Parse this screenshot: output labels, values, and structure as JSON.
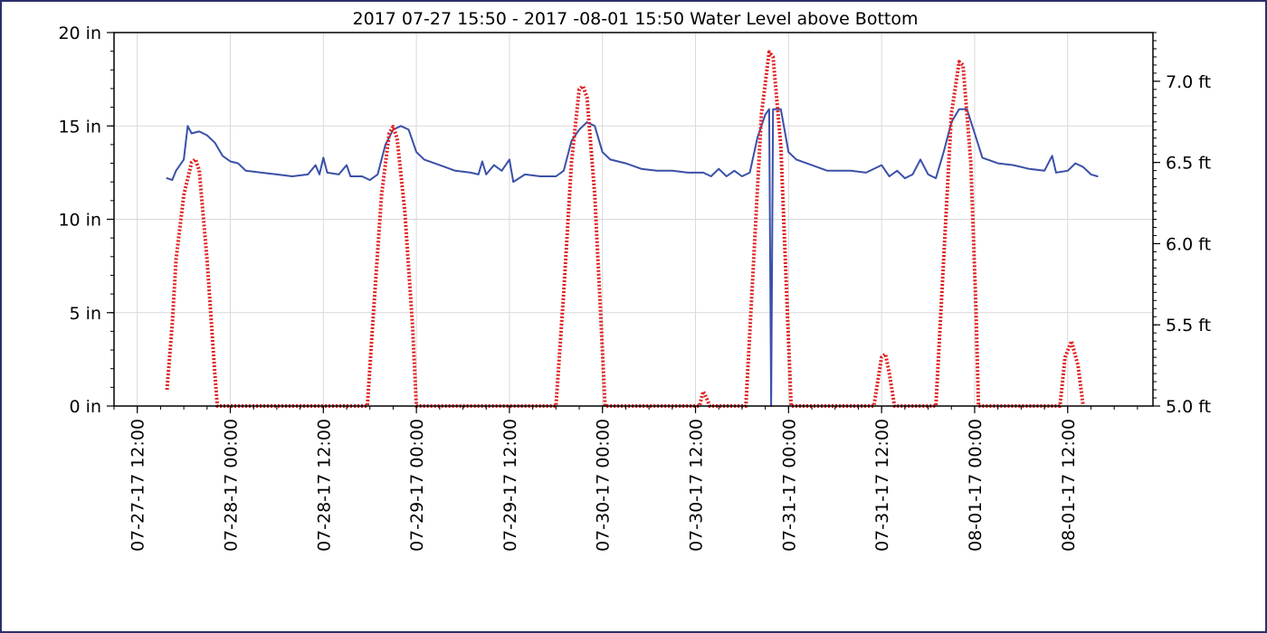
{
  "chart_data": {
    "type": "line",
    "title": "2017 07-27 15:50 - 2017 -08-01 15:50 Water Level above Bottom",
    "xlabel": "",
    "ylabel": "",
    "x_range": [
      "2017-07-27 09:00",
      "2017-08-01 23:00"
    ],
    "x_tick_labels": [
      "07-27-17 12:00",
      "07-28-17 00:00",
      "07-28-17 12:00",
      "07-29-17 00:00",
      "07-29-17 12:00",
      "07-30-17 00:00",
      "07-30-17 12:00",
      "07-31-17 00:00",
      "07-31-17 12:00",
      "08-01-17 00:00",
      "08-01-17 12:00"
    ],
    "y_left": {
      "unit": "in",
      "range": [
        0,
        20
      ],
      "ticks": [
        0,
        5,
        10,
        15,
        20
      ],
      "tick_labels": [
        "0 in",
        "5 in",
        "10 in",
        "15 in",
        "20 in"
      ]
    },
    "y_right": {
      "unit": "ft",
      "range": [
        5.0,
        7.3
      ],
      "ticks": [
        5.0,
        5.5,
        6.0,
        6.5,
        7.0
      ],
      "tick_labels": [
        "5.0 ft",
        "5.5 ft",
        "6.0 ft",
        "6.5 ft",
        "7.0 ft"
      ]
    },
    "grid": true,
    "legend": "none",
    "series": [
      {
        "axis": "left",
        "color": "#3a50a8",
        "style": "solid",
        "points": [
          [
            "2017-07-27 15:50",
            12.2
          ],
          [
            "2017-07-27 16:30",
            12.1
          ],
          [
            "2017-07-27 17:00",
            12.6
          ],
          [
            "2017-07-27 18:00",
            13.2
          ],
          [
            "2017-07-27 18:30",
            15.0
          ],
          [
            "2017-07-27 19:00",
            14.6
          ],
          [
            "2017-07-27 20:00",
            14.7
          ],
          [
            "2017-07-27 21:00",
            14.5
          ],
          [
            "2017-07-27 22:00",
            14.1
          ],
          [
            "2017-07-27 23:00",
            13.4
          ],
          [
            "2017-07-28 00:00",
            13.1
          ],
          [
            "2017-07-28 01:00",
            13.0
          ],
          [
            "2017-07-28 02:00",
            12.6
          ],
          [
            "2017-07-28 04:00",
            12.5
          ],
          [
            "2017-07-28 06:00",
            12.4
          ],
          [
            "2017-07-28 08:00",
            12.3
          ],
          [
            "2017-07-28 10:00",
            12.4
          ],
          [
            "2017-07-28 11:00",
            12.9
          ],
          [
            "2017-07-28 11:30",
            12.4
          ],
          [
            "2017-07-28 12:00",
            13.3
          ],
          [
            "2017-07-28 12:30",
            12.5
          ],
          [
            "2017-07-28 14:00",
            12.4
          ],
          [
            "2017-07-28 15:00",
            12.9
          ],
          [
            "2017-07-28 15:30",
            12.3
          ],
          [
            "2017-07-28 17:00",
            12.3
          ],
          [
            "2017-07-28 18:00",
            12.1
          ],
          [
            "2017-07-28 19:00",
            12.4
          ],
          [
            "2017-07-28 20:00",
            14.0
          ],
          [
            "2017-07-28 21:00",
            14.8
          ],
          [
            "2017-07-28 22:00",
            15.0
          ],
          [
            "2017-07-28 23:00",
            14.8
          ],
          [
            "2017-07-29 00:00",
            13.6
          ],
          [
            "2017-07-29 01:00",
            13.2
          ],
          [
            "2017-07-29 03:00",
            12.9
          ],
          [
            "2017-07-29 05:00",
            12.6
          ],
          [
            "2017-07-29 07:00",
            12.5
          ],
          [
            "2017-07-29 08:00",
            12.4
          ],
          [
            "2017-07-29 08:30",
            13.1
          ],
          [
            "2017-07-29 09:00",
            12.4
          ],
          [
            "2017-07-29 10:00",
            12.9
          ],
          [
            "2017-07-29 11:00",
            12.6
          ],
          [
            "2017-07-29 12:00",
            13.2
          ],
          [
            "2017-07-29 12:30",
            12.0
          ],
          [
            "2017-07-29 14:00",
            12.4
          ],
          [
            "2017-07-29 16:00",
            12.3
          ],
          [
            "2017-07-29 18:00",
            12.3
          ],
          [
            "2017-07-29 19:00",
            12.6
          ],
          [
            "2017-07-29 20:00",
            14.2
          ],
          [
            "2017-07-29 21:00",
            14.8
          ],
          [
            "2017-07-29 22:00",
            15.2
          ],
          [
            "2017-07-29 23:00",
            15.0
          ],
          [
            "2017-07-30 00:00",
            13.6
          ],
          [
            "2017-07-30 01:00",
            13.2
          ],
          [
            "2017-07-30 03:00",
            13.0
          ],
          [
            "2017-07-30 05:00",
            12.7
          ],
          [
            "2017-07-30 07:00",
            12.6
          ],
          [
            "2017-07-30 09:00",
            12.6
          ],
          [
            "2017-07-30 11:00",
            12.5
          ],
          [
            "2017-07-30 13:00",
            12.5
          ],
          [
            "2017-07-30 14:00",
            12.3
          ],
          [
            "2017-07-30 15:00",
            12.7
          ],
          [
            "2017-07-30 16:00",
            12.3
          ],
          [
            "2017-07-30 17:00",
            12.6
          ],
          [
            "2017-07-30 18:00",
            12.3
          ],
          [
            "2017-07-30 19:00",
            12.5
          ],
          [
            "2017-07-30 20:00",
            14.4
          ],
          [
            "2017-07-30 21:00",
            15.6
          ],
          [
            "2017-07-30 21:30",
            15.9
          ],
          [
            "2017-07-30 21:45",
            0.0
          ],
          [
            "2017-07-30 22:00",
            15.9
          ],
          [
            "2017-07-30 23:00",
            15.9
          ],
          [
            "2017-07-31 00:00",
            13.6
          ],
          [
            "2017-07-31 01:00",
            13.2
          ],
          [
            "2017-07-31 03:00",
            12.9
          ],
          [
            "2017-07-31 05:00",
            12.6
          ],
          [
            "2017-07-31 08:00",
            12.6
          ],
          [
            "2017-07-31 10:00",
            12.5
          ],
          [
            "2017-07-31 12:00",
            12.9
          ],
          [
            "2017-07-31 13:00",
            12.3
          ],
          [
            "2017-07-31 14:00",
            12.6
          ],
          [
            "2017-07-31 15:00",
            12.2
          ],
          [
            "2017-07-31 16:00",
            12.4
          ],
          [
            "2017-07-31 17:00",
            13.2
          ],
          [
            "2017-07-31 18:00",
            12.4
          ],
          [
            "2017-07-31 19:00",
            12.2
          ],
          [
            "2017-07-31 20:00",
            13.6
          ],
          [
            "2017-07-31 21:00",
            15.2
          ],
          [
            "2017-07-31 22:00",
            15.9
          ],
          [
            "2017-07-31 23:00",
            15.9
          ],
          [
            "2017-08-01 00:00",
            14.6
          ],
          [
            "2017-08-01 01:00",
            13.3
          ],
          [
            "2017-08-01 03:00",
            13.0
          ],
          [
            "2017-08-01 05:00",
            12.9
          ],
          [
            "2017-08-01 07:00",
            12.7
          ],
          [
            "2017-08-01 09:00",
            12.6
          ],
          [
            "2017-08-01 10:00",
            13.4
          ],
          [
            "2017-08-01 10:30",
            12.5
          ],
          [
            "2017-08-01 12:00",
            12.6
          ],
          [
            "2017-08-01 13:00",
            13.0
          ],
          [
            "2017-08-01 14:00",
            12.8
          ],
          [
            "2017-08-01 15:00",
            12.4
          ],
          [
            "2017-08-01 15:50",
            12.3
          ]
        ]
      },
      {
        "axis": "right",
        "color": "#e02020",
        "style": "dotted",
        "points": [
          [
            "2017-07-27 15:50",
            5.1
          ],
          [
            "2017-07-27 16:30",
            5.5
          ],
          [
            "2017-07-27 17:00",
            5.9
          ],
          [
            "2017-07-27 18:00",
            6.3
          ],
          [
            "2017-07-27 19:00",
            6.5
          ],
          [
            "2017-07-27 19:30",
            6.52
          ],
          [
            "2017-07-27 20:00",
            6.45
          ],
          [
            "2017-07-27 21:00",
            5.9
          ],
          [
            "2017-07-27 22:00",
            5.2
          ],
          [
            "2017-07-27 22:20",
            5.0
          ],
          [
            "2017-07-28 17:40",
            5.0
          ],
          [
            "2017-07-28 18:30",
            5.6
          ],
          [
            "2017-07-28 19:30",
            6.3
          ],
          [
            "2017-07-28 20:30",
            6.68
          ],
          [
            "2017-07-28 21:00",
            6.72
          ],
          [
            "2017-07-28 21:30",
            6.65
          ],
          [
            "2017-07-28 22:30",
            6.2
          ],
          [
            "2017-07-28 23:30",
            5.5
          ],
          [
            "2017-07-29 00:00",
            5.0
          ],
          [
            "2017-07-29 18:00",
            5.0
          ],
          [
            "2017-07-29 19:00",
            5.7
          ],
          [
            "2017-07-29 20:00",
            6.5
          ],
          [
            "2017-07-29 21:00",
            6.95
          ],
          [
            "2017-07-29 21:30",
            6.97
          ],
          [
            "2017-07-29 22:00",
            6.9
          ],
          [
            "2017-07-29 23:00",
            6.3
          ],
          [
            "2017-07-29 23:50",
            5.5
          ],
          [
            "2017-07-30 00:20",
            5.0
          ],
          [
            "2017-07-30 12:30",
            5.0
          ],
          [
            "2017-07-30 13:00",
            5.09
          ],
          [
            "2017-07-30 13:30",
            5.04
          ],
          [
            "2017-07-30 13:50",
            5.0
          ],
          [
            "2017-07-30 18:30",
            5.0
          ],
          [
            "2017-07-30 19:30",
            5.9
          ],
          [
            "2017-07-30 20:30",
            6.8
          ],
          [
            "2017-07-30 21:30",
            7.18
          ],
          [
            "2017-07-30 22:00",
            7.15
          ],
          [
            "2017-07-30 23:00",
            6.6
          ],
          [
            "2017-07-30 23:50",
            5.6
          ],
          [
            "2017-07-31 00:20",
            5.0
          ],
          [
            "2017-07-31 11:00",
            5.0
          ],
          [
            "2017-07-31 12:00",
            5.3
          ],
          [
            "2017-07-31 12:30",
            5.32
          ],
          [
            "2017-07-31 13:00",
            5.2
          ],
          [
            "2017-07-31 13:40",
            5.0
          ],
          [
            "2017-07-31 19:00",
            5.0
          ],
          [
            "2017-07-31 20:00",
            5.9
          ],
          [
            "2017-07-31 21:00",
            6.8
          ],
          [
            "2017-07-31 22:00",
            7.12
          ],
          [
            "2017-07-31 22:30",
            7.1
          ],
          [
            "2017-07-31 23:30",
            6.5
          ],
          [
            "2017-08-01 00:10",
            5.6
          ],
          [
            "2017-08-01 00:30",
            5.0
          ],
          [
            "2017-08-01 11:00",
            5.0
          ],
          [
            "2017-08-01 11:40",
            5.3
          ],
          [
            "2017-08-01 12:30",
            5.4
          ],
          [
            "2017-08-01 13:20",
            5.25
          ],
          [
            "2017-08-01 14:00",
            5.0
          ]
        ]
      }
    ]
  }
}
